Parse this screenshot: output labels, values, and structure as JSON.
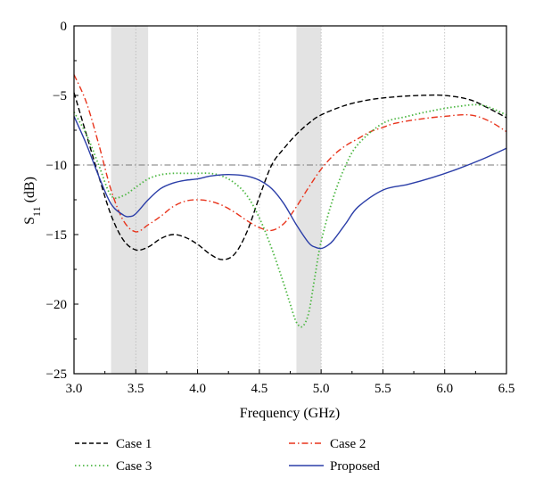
{
  "chart_data": {
    "type": "line",
    "xlabel": "Frequency (GHz)",
    "ylabel_main": "S",
    "ylabel_sub": "11",
    "ylabel_unit": " (dB)",
    "xlim": [
      3.0,
      6.5
    ],
    "ylim": [
      -25,
      0
    ],
    "xticks": [
      "3.0",
      "3.5",
      "4.0",
      "4.5",
      "5.0",
      "5.5",
      "6.0",
      "6.5"
    ],
    "yticks": [
      "0",
      "-5",
      "-10",
      "-15",
      "-20",
      "-25"
    ],
    "grid": "vertical",
    "reference_line": -10,
    "shaded_bands": [
      [
        3.3,
        3.6
      ],
      [
        4.8,
        5.0
      ]
    ],
    "legend_position": "bottom",
    "series": [
      {
        "name": "Case 1",
        "color": "#000000",
        "dash": "dashed",
        "x": [
          3.0,
          3.1,
          3.2,
          3.3,
          3.4,
          3.5,
          3.6,
          3.7,
          3.8,
          3.9,
          4.0,
          4.1,
          4.2,
          4.3,
          4.4,
          4.5,
          4.6,
          4.7,
          4.8,
          4.9,
          5.0,
          5.2,
          5.4,
          5.6,
          5.8,
          6.0,
          6.2,
          6.35,
          6.5
        ],
        "y": [
          -4.8,
          -7.8,
          -10.8,
          -13.6,
          -15.4,
          -16.1,
          -15.9,
          -15.3,
          -15.0,
          -15.2,
          -15.7,
          -16.4,
          -16.8,
          -16.4,
          -14.8,
          -12.3,
          -10.0,
          -8.8,
          -7.8,
          -7.0,
          -6.4,
          -5.7,
          -5.3,
          -5.1,
          -5.0,
          -5.0,
          -5.3,
          -5.9,
          -6.6
        ]
      },
      {
        "name": "Case 2",
        "color": "#e8341c",
        "dash": "dashdot",
        "x": [
          3.0,
          3.1,
          3.2,
          3.3,
          3.4,
          3.5,
          3.6,
          3.7,
          3.8,
          3.9,
          4.0,
          4.1,
          4.2,
          4.3,
          4.4,
          4.5,
          4.6,
          4.7,
          4.8,
          4.9,
          5.0,
          5.1,
          5.2,
          5.3,
          5.4,
          5.5,
          5.6,
          5.8,
          6.0,
          6.2,
          6.35,
          6.5
        ],
        "y": [
          -3.5,
          -5.5,
          -8.5,
          -11.8,
          -14.0,
          -14.8,
          -14.3,
          -13.7,
          -13.0,
          -12.6,
          -12.5,
          -12.6,
          -12.9,
          -13.4,
          -14.0,
          -14.5,
          -14.7,
          -14.2,
          -13.0,
          -11.6,
          -10.3,
          -9.3,
          -8.6,
          -8.1,
          -7.6,
          -7.3,
          -7.0,
          -6.7,
          -6.5,
          -6.4,
          -6.8,
          -7.6
        ]
      },
      {
        "name": "Case 3",
        "color": "#4fb845",
        "dash": "dotted",
        "x": [
          3.0,
          3.1,
          3.2,
          3.3,
          3.4,
          3.5,
          3.6,
          3.7,
          3.8,
          3.9,
          4.0,
          4.1,
          4.2,
          4.3,
          4.4,
          4.5,
          4.6,
          4.7,
          4.75,
          4.8,
          4.85,
          4.9,
          4.95,
          5.0,
          5.1,
          5.2,
          5.3,
          5.5,
          5.7,
          5.9,
          6.1,
          6.3,
          6.5
        ],
        "y": [
          -6.2,
          -7.8,
          -10.0,
          -12.2,
          -12.2,
          -11.6,
          -11.0,
          -10.7,
          -10.6,
          -10.6,
          -10.6,
          -10.6,
          -10.8,
          -11.3,
          -12.2,
          -13.8,
          -16.0,
          -18.6,
          -20.0,
          -21.3,
          -21.6,
          -20.6,
          -18.0,
          -15.5,
          -12.3,
          -10.0,
          -8.5,
          -7.0,
          -6.5,
          -6.1,
          -5.8,
          -5.7,
          -6.4
        ]
      },
      {
        "name": "Proposed",
        "color": "#2b3ea8",
        "dash": "solid",
        "x": [
          3.0,
          3.1,
          3.2,
          3.3,
          3.4,
          3.45,
          3.5,
          3.6,
          3.7,
          3.8,
          3.9,
          4.0,
          4.1,
          4.2,
          4.3,
          4.4,
          4.5,
          4.6,
          4.7,
          4.8,
          4.9,
          4.95,
          5.0,
          5.05,
          5.1,
          5.2,
          5.3,
          5.5,
          5.7,
          5.9,
          6.1,
          6.3,
          6.5
        ],
        "y": [
          -6.5,
          -8.5,
          -10.8,
          -12.8,
          -13.6,
          -13.7,
          -13.5,
          -12.5,
          -11.7,
          -11.3,
          -11.1,
          -11.0,
          -10.8,
          -10.7,
          -10.7,
          -10.8,
          -11.1,
          -11.7,
          -12.8,
          -14.3,
          -15.6,
          -15.9,
          -16.0,
          -15.8,
          -15.4,
          -14.2,
          -13.0,
          -11.8,
          -11.4,
          -10.9,
          -10.3,
          -9.6,
          -8.8
        ]
      }
    ]
  }
}
